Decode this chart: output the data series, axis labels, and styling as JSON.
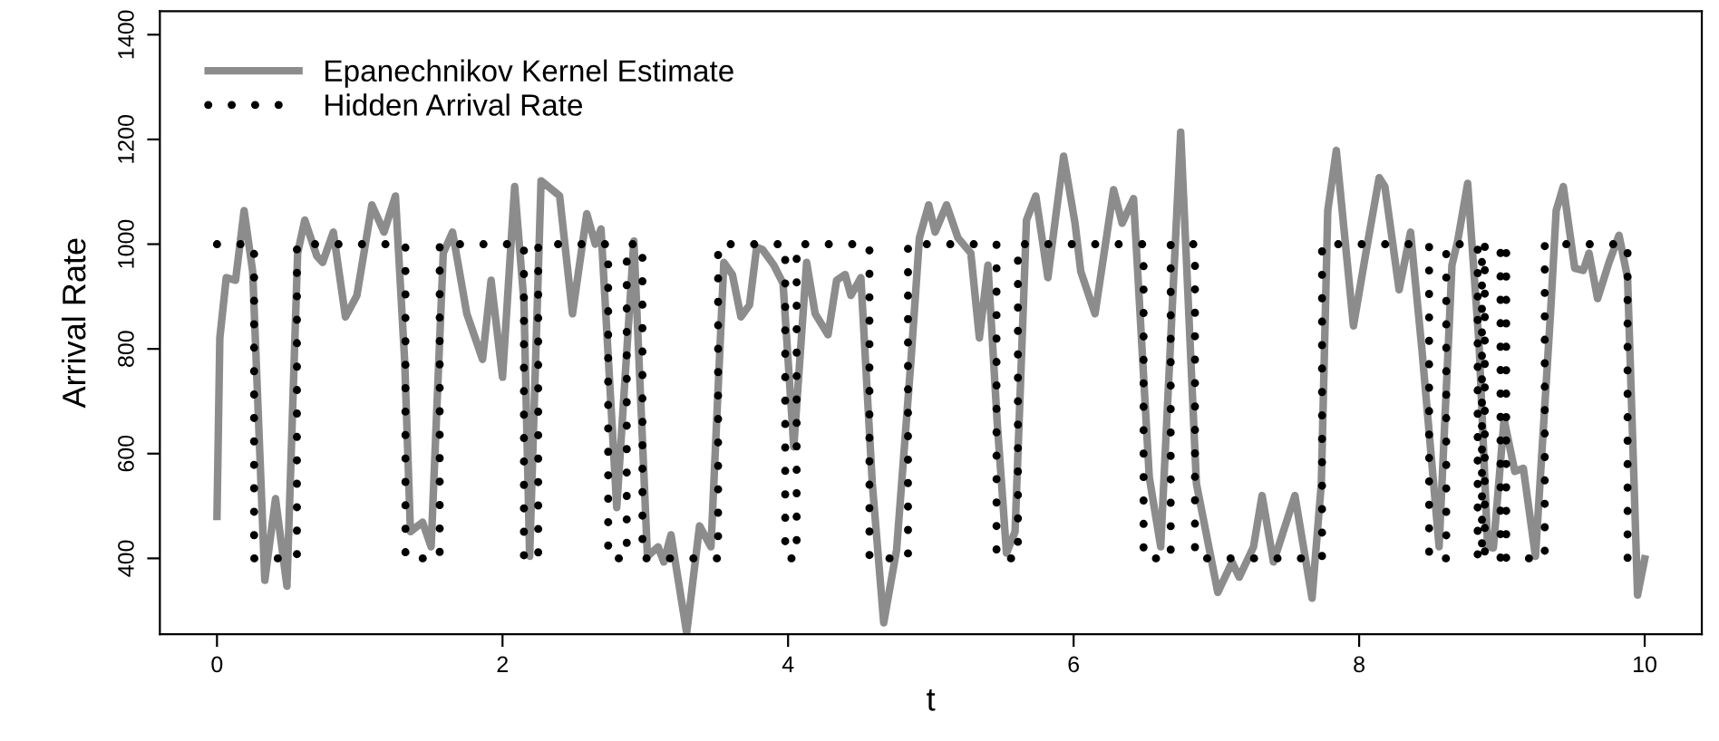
{
  "chart_data": {
    "type": "line",
    "xlabel": "t",
    "ylabel": "Arrival Rate",
    "xlim": [
      -0.4,
      10.4
    ],
    "xticks": [
      0,
      2,
      4,
      6,
      8,
      10
    ],
    "ylim": [
      255,
      1445
    ],
    "yticks": [
      400,
      600,
      800,
      1000,
      1200,
      1400
    ],
    "legend": "top left",
    "series": [
      {
        "name": "Epanechnikov Kernel Estimate",
        "color": "#8c8c8c",
        "line_style": "solid",
        "x": [
          0.0,
          0.02,
          0.065,
          0.13,
          0.19,
          0.25,
          0.335,
          0.41,
          0.49,
          0.565,
          0.615,
          0.7,
          0.74,
          0.815,
          0.9,
          0.98,
          1.085,
          1.17,
          1.25,
          1.315,
          1.355,
          1.44,
          1.5,
          1.585,
          1.65,
          1.75,
          1.86,
          1.92,
          2.0,
          2.085,
          2.15,
          2.19,
          2.27,
          2.4,
          2.49,
          2.59,
          2.65,
          2.69,
          2.8,
          2.92,
          3.015,
          3.09,
          3.13,
          3.18,
          3.29,
          3.38,
          3.46,
          3.55,
          3.61,
          3.67,
          3.73,
          3.78,
          3.82,
          3.9,
          3.965,
          4.04,
          4.13,
          4.19,
          4.28,
          4.34,
          4.4,
          4.44,
          4.51,
          4.59,
          4.67,
          4.76,
          4.86,
          4.92,
          4.985,
          5.03,
          5.11,
          5.19,
          5.28,
          5.34,
          5.4,
          5.465,
          5.53,
          5.59,
          5.67,
          5.735,
          5.82,
          5.88,
          5.93,
          6.01,
          6.05,
          6.15,
          6.28,
          6.34,
          6.42,
          6.53,
          6.61,
          6.75,
          6.86,
          7.01,
          7.11,
          7.16,
          7.26,
          7.32,
          7.4,
          7.55,
          7.67,
          7.735,
          7.78,
          7.84,
          7.96,
          8.05,
          8.14,
          8.18,
          8.28,
          8.36,
          8.44,
          8.56,
          8.65,
          8.69,
          8.76,
          8.84,
          8.9,
          8.94,
          9.015,
          9.09,
          9.15,
          9.235,
          9.34,
          9.38,
          9.43,
          9.51,
          9.57,
          9.61,
          9.67,
          9.75,
          9.82,
          9.88,
          9.95,
          10.0
        ],
        "values": [
          480,
          821,
          936,
          931,
          1064,
          948,
          358,
          514,
          347,
          983,
          1046,
          977,
          965,
          1023,
          861,
          902,
          1075,
          1023,
          1092,
          775,
          451,
          469,
          422,
          983,
          1023,
          867,
          780,
          931,
          746,
          1110,
          890,
          404,
          1121,
          1092,
          867,
          1058,
          1000,
          1029,
          497,
          1006,
          404,
          422,
          393,
          445,
          258,
          462,
          422,
          965,
          942,
          861,
          884,
          994,
          990,
          960,
          925,
          613,
          965,
          867,
          827,
          931,
          942,
          902,
          936,
          543,
          277,
          416,
          775,
          1012,
          1075,
          1023,
          1075,
          1012,
          983,
          821,
          960,
          659,
          410,
          451,
          1046,
          1092,
          936,
          1064,
          1168,
          1040,
          948,
          867,
          1104,
          1040,
          1087,
          555,
          422,
          1214,
          543,
          335,
          393,
          364,
          422,
          520,
          393,
          520,
          324,
          543,
          1064,
          1179,
          844,
          988,
          1127,
          1110,
          913,
          1023,
          798,
          422,
          960,
          1006,
          1116,
          809,
          422,
          420,
          665,
          566,
          572,
          404,
          867,
          1064,
          1110,
          954,
          950,
          983,
          896,
          965,
          1017,
          936,
          330,
          399
        ]
      },
      {
        "name": "Hidden Arrival Rate",
        "color": "#000000",
        "line_style": "dotted",
        "x": [
          0.0,
          0.26,
          0.26,
          0.56,
          0.56,
          1.32,
          1.32,
          1.56,
          1.56,
          2.15,
          2.15,
          2.25,
          2.25,
          2.74,
          2.74,
          2.87,
          2.87,
          2.98,
          2.98,
          3.51,
          3.51,
          3.98,
          3.98,
          4.06,
          4.06,
          4.57,
          4.57,
          4.84,
          4.84,
          5.46,
          5.46,
          5.61,
          5.61,
          6.49,
          6.49,
          6.68,
          6.68,
          6.85,
          6.85,
          7.74,
          7.74,
          8.49,
          8.49,
          8.61,
          8.61,
          8.83,
          8.83,
          8.86,
          8.86,
          8.88,
          8.88,
          8.99,
          8.99,
          9.03,
          9.03,
          9.3,
          9.3,
          9.88,
          9.88,
          10.0
        ],
        "values": [
          1000,
          1000,
          400,
          400,
          1000,
          1000,
          400,
          400,
          1000,
          1000,
          400,
          400,
          1000,
          1000,
          400,
          400,
          1000,
          1000,
          400,
          400,
          1000,
          1000,
          400,
          400,
          1000,
          1000,
          400,
          400,
          1000,
          1000,
          400,
          400,
          1000,
          1000,
          400,
          400,
          1000,
          1000,
          400,
          400,
          1000,
          1000,
          400,
          400,
          1000,
          1000,
          400,
          400,
          1000,
          1000,
          400,
          400,
          1000,
          1000,
          400,
          400,
          1000,
          1000,
          400,
          400
        ]
      }
    ]
  }
}
